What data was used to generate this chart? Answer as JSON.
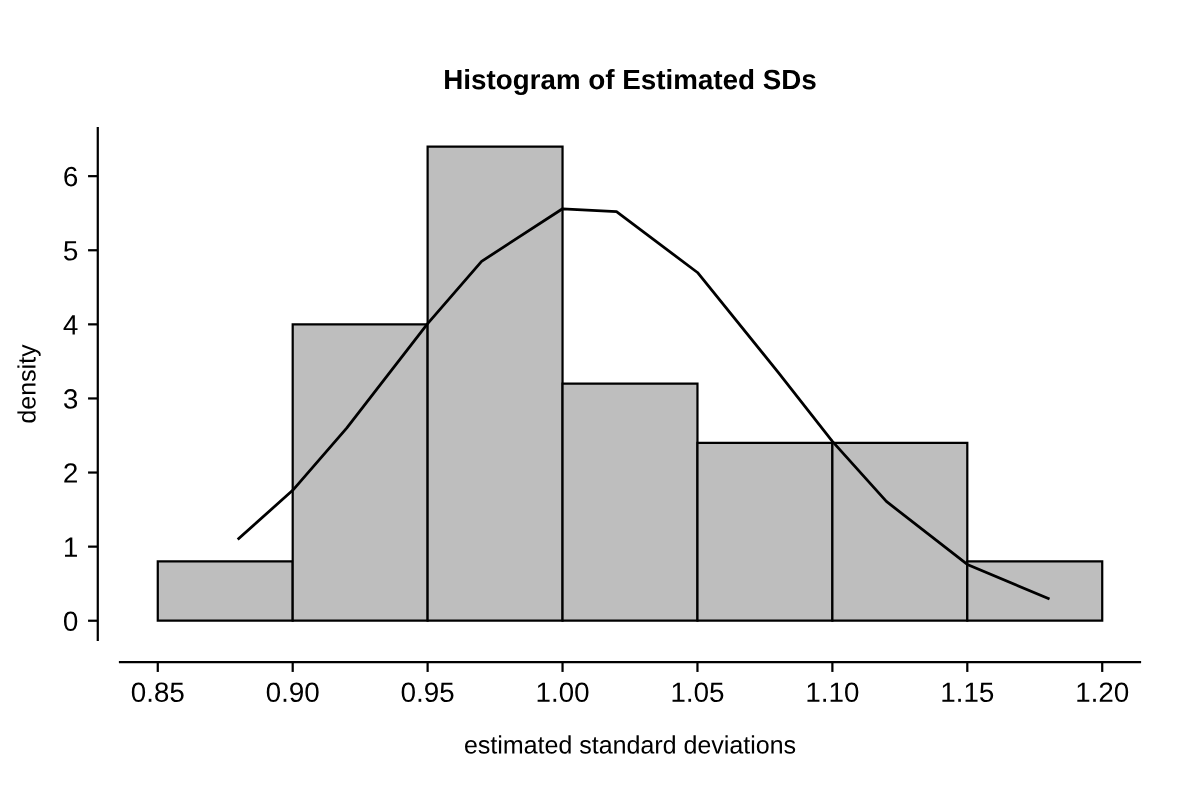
{
  "chart_data": {
    "type": "histogram",
    "title": "Histogram of Estimated SDs",
    "xlabel": "estimated standard deviations",
    "ylabel": "density",
    "bins": [
      0.85,
      0.9,
      0.95,
      1.0,
      1.05,
      1.1,
      1.15,
      1.2
    ],
    "values": [
      0.8,
      4,
      6.4,
      3.2,
      2.4,
      2.4,
      0.8
    ],
    "color": "#bebebe",
    "series": [
      {
        "type": "line",
        "color": "#000000",
        "x": [
          0.88,
          0.9,
          0.92,
          0.95,
          0.97,
          1.0,
          1.02,
          1.05,
          1.08,
          1.1,
          1.12,
          1.15,
          1.18
        ],
        "values": [
          1.11,
          1.76,
          2.6,
          4.01,
          4.85,
          5.56,
          5.52,
          4.7,
          3.35,
          2.42,
          1.61,
          0.76,
          0.3
        ]
      }
    ],
    "xlim": [
      0.836,
      1.214
    ],
    "ylim": [
      -0.26,
      6.65
    ],
    "xticks": [
      {
        "value": 0.85,
        "label": "0.85"
      },
      {
        "value": 0.9,
        "label": "0.90"
      },
      {
        "value": 0.95,
        "label": "0.95"
      },
      {
        "value": 1.0,
        "label": "1.00"
      },
      {
        "value": 1.05,
        "label": "1.05"
      },
      {
        "value": 1.1,
        "label": "1.10"
      },
      {
        "value": 1.15,
        "label": "1.15"
      },
      {
        "value": 1.2,
        "label": "1.20"
      }
    ],
    "yticks": [
      0,
      1,
      2,
      3,
      4,
      5,
      6
    ],
    "grid": false,
    "legend": false
  }
}
